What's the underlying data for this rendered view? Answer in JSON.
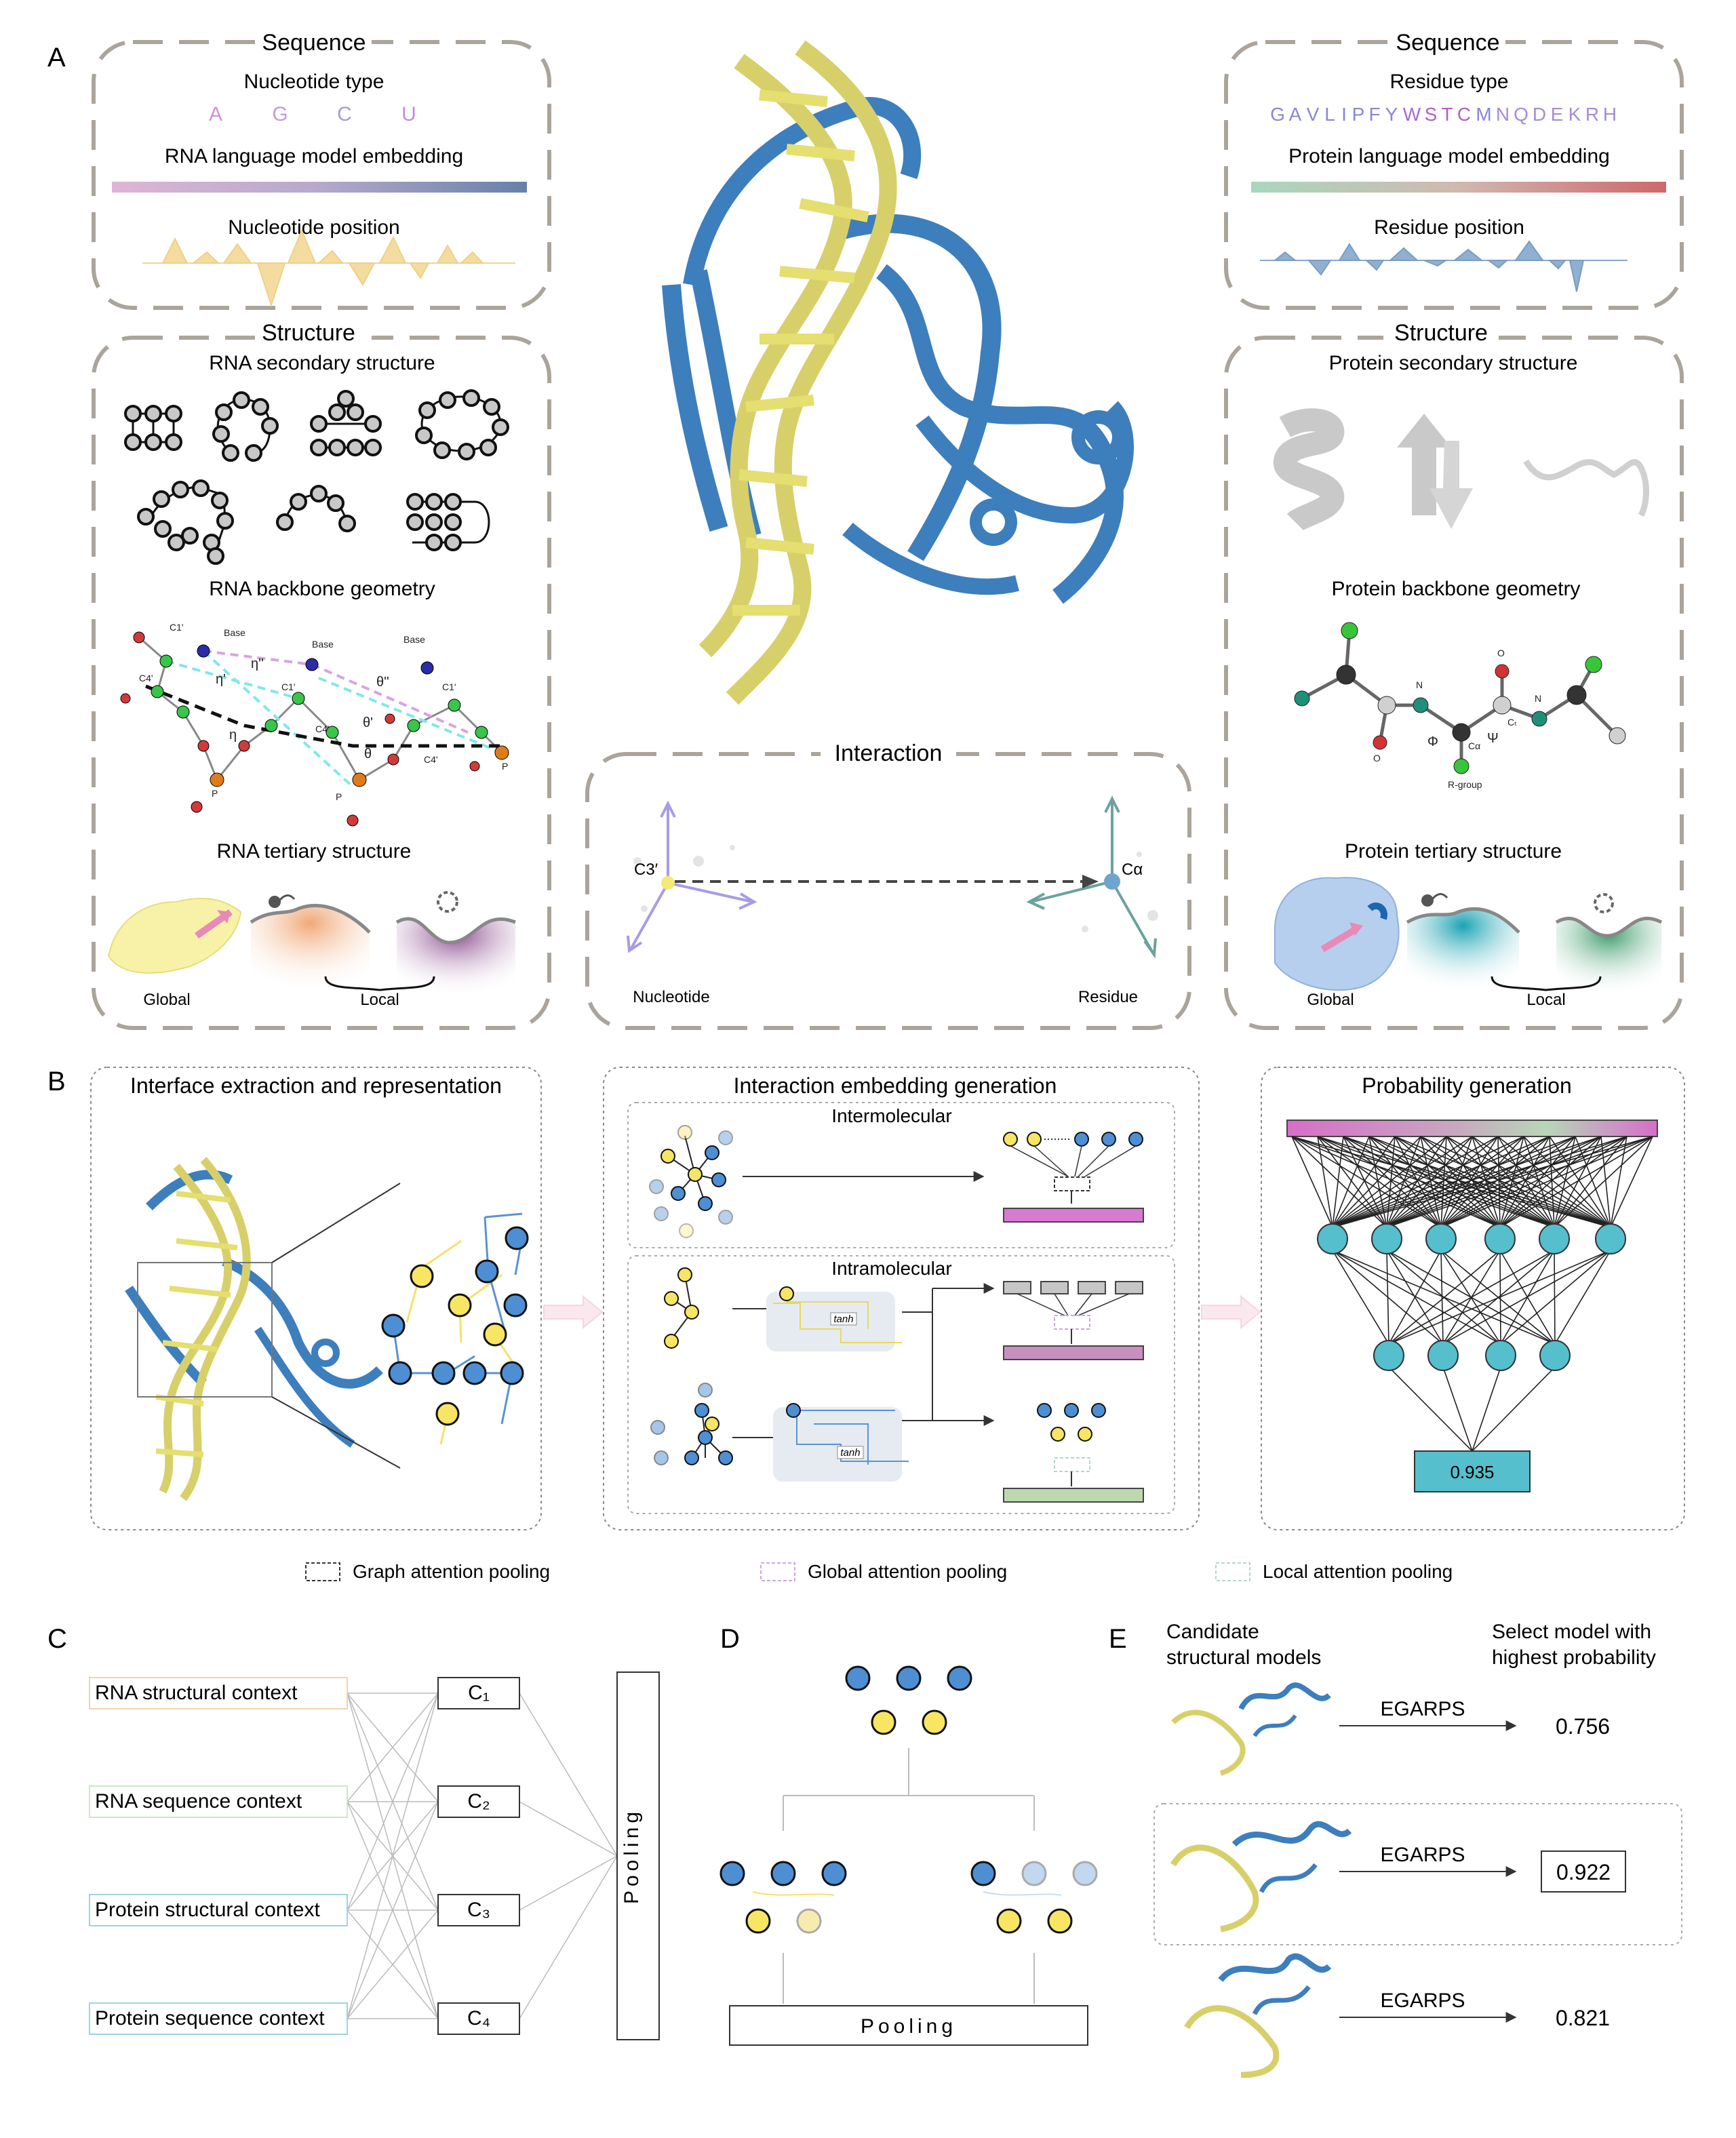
{
  "panels": {
    "A": "A",
    "B": "B",
    "C": "C",
    "D": "D",
    "E": "E"
  },
  "a": {
    "rna_seq": {
      "title": "Sequence",
      "nt_type": "Nucleotide type",
      "letters": [
        "A",
        "G",
        "C",
        "U"
      ],
      "lm": "RNA language model embedding",
      "pos": "Nucleotide position"
    },
    "rna_struct": {
      "title": "Structure",
      "ss": "RNA secondary structure",
      "bb": "RNA backbone geometry",
      "ts": "RNA tertiary structure",
      "global": "Global",
      "local": "Local"
    },
    "rna_bb_labels": [
      "C1'",
      "Base",
      "Base",
      "Base",
      "η'",
      "η''",
      "θ''",
      "C4'",
      "C1'",
      "C4'",
      "θ'",
      "η",
      "θ",
      "C1'",
      "C4'",
      "P",
      "P",
      "P"
    ],
    "prot_seq": {
      "title": "Sequence",
      "res_type": "Residue type",
      "letters": [
        "G",
        "A",
        "V",
        "L",
        "I",
        "P",
        "F",
        "Y",
        "W",
        "S",
        "T",
        "C",
        "M",
        "N",
        "Q",
        "D",
        "E",
        "K",
        "R",
        "H"
      ],
      "lm": "Protein language model embedding",
      "pos": "Residue position"
    },
    "prot_struct": {
      "title": "Structure",
      "ss": "Protein secondary structure",
      "bb": "Protein backbone geometry",
      "ts": "Protein tertiary structure",
      "global": "Global",
      "local": "Local"
    },
    "prot_bb_labels": [
      "N",
      "N",
      "O",
      "O",
      "Φ",
      "Ψ",
      "Cα",
      "Cₜ",
      "R-group"
    ],
    "interaction": {
      "title": "Interaction",
      "c3": "C3′",
      "ca": "Cα",
      "nucleotide": "Nucleotide",
      "residue": "Residue"
    }
  },
  "b": {
    "box1": "Interface extraction and representation",
    "box2": "Interaction embedding generation",
    "inter": "Intermolecular",
    "intra": "Intramolecular",
    "tanh": "tanh",
    "box3": "Probability generation",
    "prob": "0.935",
    "legend": [
      "Graph attention pooling",
      "Global attention pooling",
      "Local attention pooling"
    ]
  },
  "c": {
    "contexts": [
      "RNA structural context",
      "RNA sequence context",
      "Protein structural context",
      "Protein sequence context"
    ],
    "cs": [
      "C₁",
      "C₂",
      "C₃",
      "C₄"
    ],
    "pooling": "Pooling"
  },
  "d": {
    "pooling": "Pooling"
  },
  "e": {
    "cand": "Candidate\nstructural models",
    "sel": "Select model with\nhighest probability",
    "rows": [
      {
        "method": "EGARPS",
        "score": "0.756"
      },
      {
        "method": "EGARPS",
        "score": "0.922"
      },
      {
        "method": "EGARPS",
        "score": "0.821"
      }
    ]
  }
}
